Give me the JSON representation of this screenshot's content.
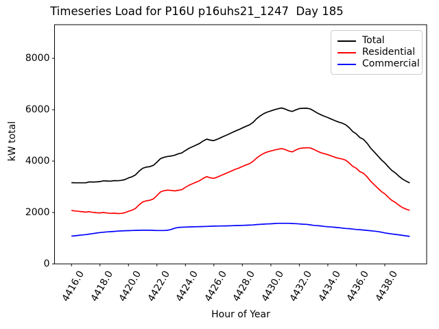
{
  "chart_data": {
    "type": "line",
    "title": "Timeseries Load for P16U p16uhs21_1247  Day 185",
    "xlabel": "Hour of Year",
    "ylabel": "kW total",
    "xlim": [
      4414.81,
      4440.94
    ],
    "ylim": [
      0,
      9310
    ],
    "grid": false,
    "legend_position": "upper right",
    "xtick_values": [
      4416,
      4418,
      4420,
      4422,
      4424,
      4426,
      4428,
      4430,
      4432,
      4434,
      4436,
      4438
    ],
    "xtick_labels": [
      "4416.0",
      "4418.0",
      "4420.0",
      "4422.0",
      "4424.0",
      "4426.0",
      "4428.0",
      "4430.0",
      "4432.0",
      "4434.0",
      "4436.0",
      "4438.0"
    ],
    "ytick_values": [
      0,
      2000,
      4000,
      6000,
      8000
    ],
    "ytick_labels": [
      "0",
      "2000",
      "4000",
      "6000",
      "8000"
    ],
    "x_start": 4416.0,
    "x_step": 0.25,
    "series": [
      {
        "name": "Total",
        "color": "#000000",
        "values": [
          3160,
          3155,
          3155,
          3155,
          3155,
          3190,
          3185,
          3190,
          3205,
          3232,
          3225,
          3220,
          3240,
          3235,
          3248,
          3280,
          3345,
          3390,
          3465,
          3608,
          3720,
          3767,
          3785,
          3835,
          3960,
          4098,
          4150,
          4180,
          4200,
          4230,
          4285,
          4318,
          4412,
          4498,
          4562,
          4626,
          4690,
          4785,
          4855,
          4815,
          4800,
          4853,
          4916,
          4978,
          5040,
          5105,
          5170,
          5225,
          5290,
          5355,
          5410,
          5505,
          5650,
          5760,
          5848,
          5910,
          5955,
          6000,
          6038,
          6070,
          6030,
          5968,
          5932,
          5995,
          6045,
          6055,
          6058,
          6035,
          5960,
          5878,
          5808,
          5750,
          5695,
          5635,
          5575,
          5520,
          5480,
          5415,
          5300,
          5155,
          5060,
          4920,
          4848,
          4700,
          4510,
          4365,
          4210,
          4055,
          3930,
          3775,
          3635,
          3538,
          3410,
          3300,
          3220,
          3150
        ]
      },
      {
        "name": "Residential",
        "color": "#ff0000",
        "values": [
          2080,
          2060,
          2045,
          2030,
          2015,
          2030,
          2005,
          1990,
          1985,
          2000,
          1980,
          1965,
          1975,
          1960,
          1965,
          1990,
          2050,
          2090,
          2160,
          2300,
          2410,
          2455,
          2475,
          2530,
          2660,
          2800,
          2850,
          2870,
          2860,
          2840,
          2865,
          2890,
          2980,
          3060,
          3120,
          3180,
          3240,
          3330,
          3395,
          3350,
          3330,
          3380,
          3440,
          3500,
          3560,
          3620,
          3680,
          3730,
          3790,
          3850,
          3900,
          3990,
          4120,
          4220,
          4300,
          4355,
          4395,
          4430,
          4460,
          4490,
          4450,
          4390,
          4360,
          4430,
          4490,
          4510,
          4520,
          4515,
          4460,
          4390,
          4330,
          4290,
          4250,
          4200,
          4150,
          4110,
          4085,
          4035,
          3930,
          3800,
          3720,
          3590,
          3530,
          3395,
          3220,
          3090,
          2950,
          2820,
          2725,
          2590,
          2470,
          2390,
          2280,
          2190,
          2130,
          2080
        ]
      },
      {
        "name": "Commercial",
        "color": "#0000ff",
        "values": [
          1080,
          1095,
          1110,
          1125,
          1140,
          1160,
          1180,
          1200,
          1220,
          1232,
          1245,
          1255,
          1265,
          1275,
          1283,
          1290,
          1295,
          1300,
          1305,
          1308,
          1310,
          1312,
          1310,
          1305,
          1300,
          1298,
          1300,
          1310,
          1340,
          1390,
          1420,
          1428,
          1432,
          1438,
          1442,
          1446,
          1450,
          1455,
          1460,
          1465,
          1470,
          1473,
          1476,
          1478,
          1480,
          1485,
          1490,
          1495,
          1500,
          1505,
          1510,
          1515,
          1530,
          1540,
          1548,
          1555,
          1560,
          1570,
          1578,
          1580,
          1580,
          1578,
          1572,
          1565,
          1555,
          1545,
          1538,
          1520,
          1500,
          1488,
          1478,
          1460,
          1445,
          1435,
          1425,
          1410,
          1395,
          1380,
          1370,
          1355,
          1340,
          1330,
          1318,
          1305,
          1290,
          1275,
          1260,
          1235,
          1205,
          1185,
          1165,
          1148,
          1130,
          1110,
          1090,
          1070
        ]
      }
    ]
  }
}
